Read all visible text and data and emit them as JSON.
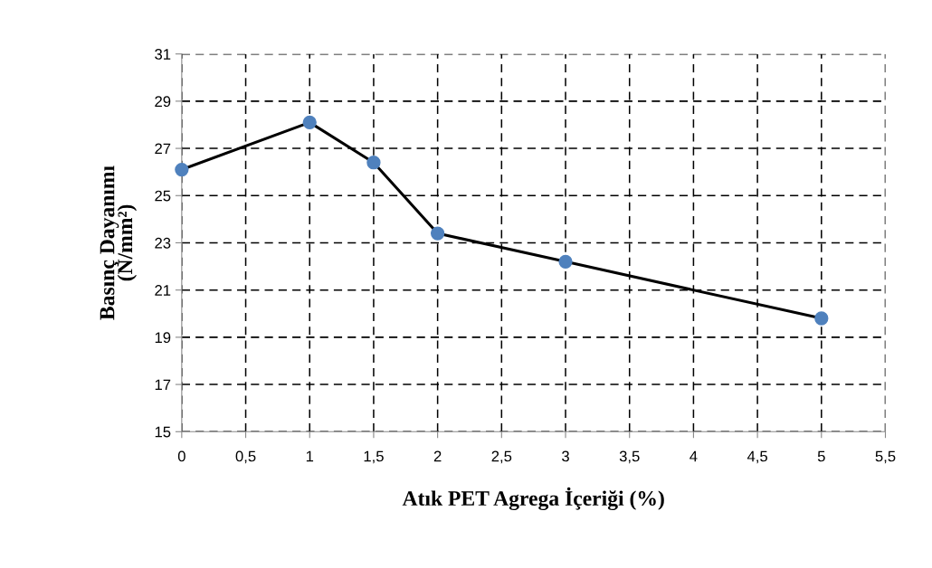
{
  "chart_data": {
    "type": "line",
    "xlabel": "Atık PET Agrega İçeriği (%)",
    "ylabel": "Basınç Dayanımı\n(N/mm²)",
    "x": [
      0,
      1,
      1.5,
      2,
      3,
      5
    ],
    "series": [
      {
        "color": "#000000",
        "colors": [
          "#4f81bd",
          "#4f81bd",
          "#4f81bd",
          "#4f81bd",
          "#4f81bd",
          "#4f81bd"
        ],
        "values": [
          26.1,
          28.1,
          26.4,
          23.4,
          22.2,
          19.8
        ]
      }
    ],
    "xlim": [
      0,
      5.5
    ],
    "ylim": [
      15,
      31
    ],
    "xticks": [
      0,
      {
        "value": 0.5,
        "label": "0,5"
      },
      1,
      {
        "value": 1.5,
        "label": "1,5"
      },
      2,
      {
        "value": 2.5,
        "label": "2,5"
      },
      3,
      {
        "value": 3.5,
        "label": "3,5"
      },
      4,
      {
        "value": 4.5,
        "label": "4,5"
      },
      5,
      {
        "value": 5.5,
        "label": "5,5"
      }
    ],
    "yticks": [
      15,
      17,
      19,
      21,
      23,
      25,
      27,
      29,
      31
    ],
    "grid": true,
    "marker": "circle",
    "line_style": "solid",
    "legend": false
  }
}
